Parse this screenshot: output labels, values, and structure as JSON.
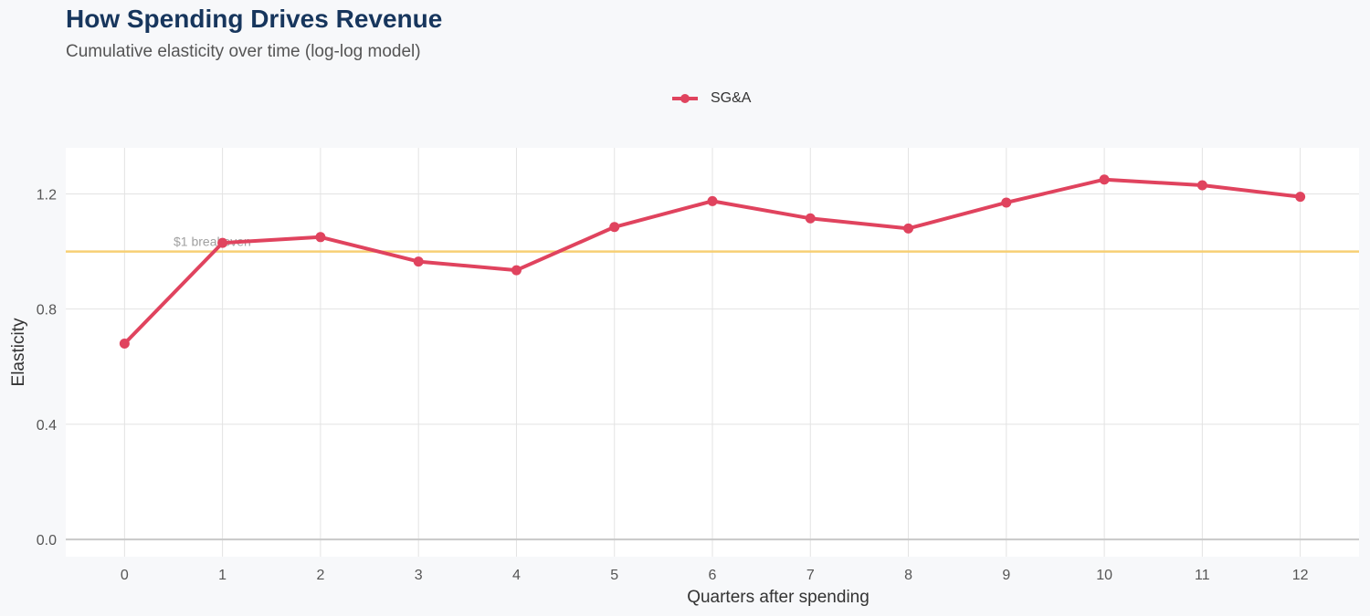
{
  "header": {
    "title": "How Spending Drives Revenue",
    "subtitle": "Cumulative elasticity over time (log-log model)"
  },
  "colors": {
    "series": "#e0435e",
    "reference_line": "#f7cf74",
    "title": "#17365d",
    "panel": "#ffffff",
    "grid": "#e3e3e3"
  },
  "chart_data": {
    "type": "line",
    "title": "How Spending Drives Revenue",
    "subtitle": "Cumulative elasticity over time (log-log model)",
    "xlabel": "Quarters after spending",
    "ylabel": "Elasticity",
    "x": [
      0,
      1,
      2,
      3,
      4,
      5,
      6,
      7,
      8,
      9,
      10,
      11,
      12
    ],
    "series": [
      {
        "name": "SG&A",
        "values": [
          0.68,
          1.03,
          1.05,
          0.965,
          0.935,
          1.085,
          1.175,
          1.115,
          1.08,
          1.17,
          1.25,
          1.23,
          1.19
        ]
      }
    ],
    "xlim": [
      -0.6,
      12.6
    ],
    "ylim": [
      -0.06,
      1.36
    ],
    "xticks": [
      "0",
      "1",
      "2",
      "3",
      "4",
      "5",
      "6",
      "7",
      "8",
      "9",
      "10",
      "11",
      "12"
    ],
    "yticks": [
      "0.0",
      "0.4",
      "0.8",
      "1.2"
    ],
    "ytick_values": [
      0,
      0.4,
      0.8,
      1.2
    ],
    "reference_line": {
      "y": 1.0,
      "label": "$1 breakeven"
    },
    "legend_position": "top-center",
    "grid": true
  }
}
